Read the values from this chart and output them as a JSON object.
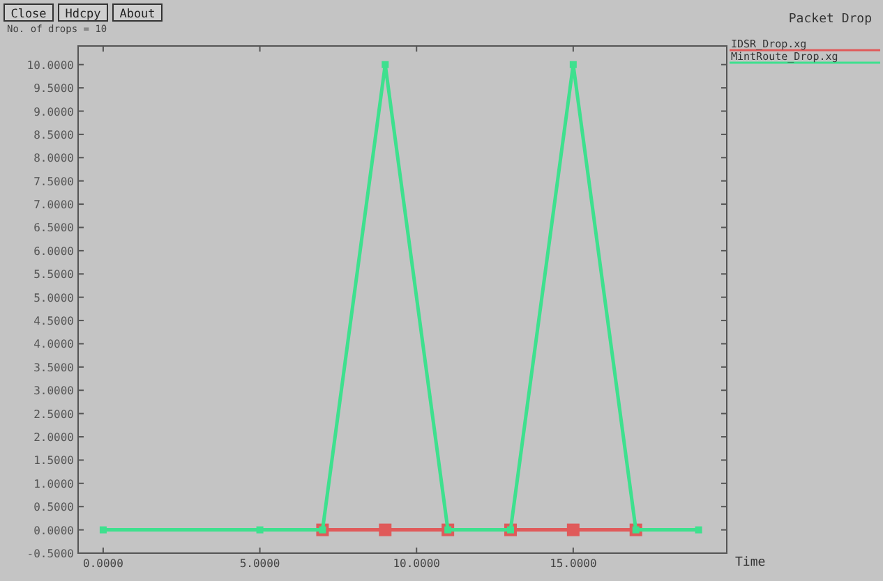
{
  "chart_data": {
    "type": "line",
    "title": "Packet Drop",
    "xlabel": "Time",
    "annotations": [
      "Close",
      "Hdcpy",
      "About",
      "No. of drops = 10"
    ],
    "xlim": [
      -0.8,
      19.9
    ],
    "ylim": [
      -0.5,
      10.4
    ],
    "xticks": [
      {
        "value": 0,
        "label": "0.0000"
      },
      {
        "value": 5,
        "label": "5.0000"
      },
      {
        "value": 10,
        "label": "10.0000"
      },
      {
        "value": 15,
        "label": "15.0000"
      }
    ],
    "yticks": [
      {
        "value": -0.5,
        "label": "-0.5000"
      },
      {
        "value": 0,
        "label": "0.0000"
      },
      {
        "value": 0.5,
        "label": "0.5000"
      },
      {
        "value": 1,
        "label": "1.0000"
      },
      {
        "value": 1.5,
        "label": "1.5000"
      },
      {
        "value": 2,
        "label": "2.0000"
      },
      {
        "value": 2.5,
        "label": "2.5000"
      },
      {
        "value": 3,
        "label": "3.0000"
      },
      {
        "value": 3.5,
        "label": "3.5000"
      },
      {
        "value": 4,
        "label": "4.0000"
      },
      {
        "value": 4.5,
        "label": "4.5000"
      },
      {
        "value": 5,
        "label": "5.0000"
      },
      {
        "value": 5.5,
        "label": "5.5000"
      },
      {
        "value": 6,
        "label": "6.0000"
      },
      {
        "value": 6.5,
        "label": "6.5000"
      },
      {
        "value": 7,
        "label": "7.0000"
      },
      {
        "value": 7.5,
        "label": "7.5000"
      },
      {
        "value": 8,
        "label": "8.0000"
      },
      {
        "value": 8.5,
        "label": "8.5000"
      },
      {
        "value": 9,
        "label": "9.0000"
      },
      {
        "value": 9.5,
        "label": "9.5000"
      },
      {
        "value": 10,
        "label": "10.0000"
      }
    ],
    "x": [
      0,
      5,
      7,
      9,
      11,
      13,
      15,
      17,
      19
    ],
    "legend": "right",
    "marker": "square",
    "grid": false,
    "series": [
      {
        "name": "IDSR_Drop.xg",
        "color": "#e05a5a",
        "x": [
          7,
          9,
          11,
          13,
          15,
          17
        ],
        "values": [
          0,
          0,
          0,
          0,
          0,
          0
        ]
      },
      {
        "name": "MintRoute_Drop.xg",
        "color": "#3ee08e",
        "values": [
          0,
          0,
          0,
          10,
          0,
          0,
          10,
          0,
          0
        ]
      }
    ]
  }
}
